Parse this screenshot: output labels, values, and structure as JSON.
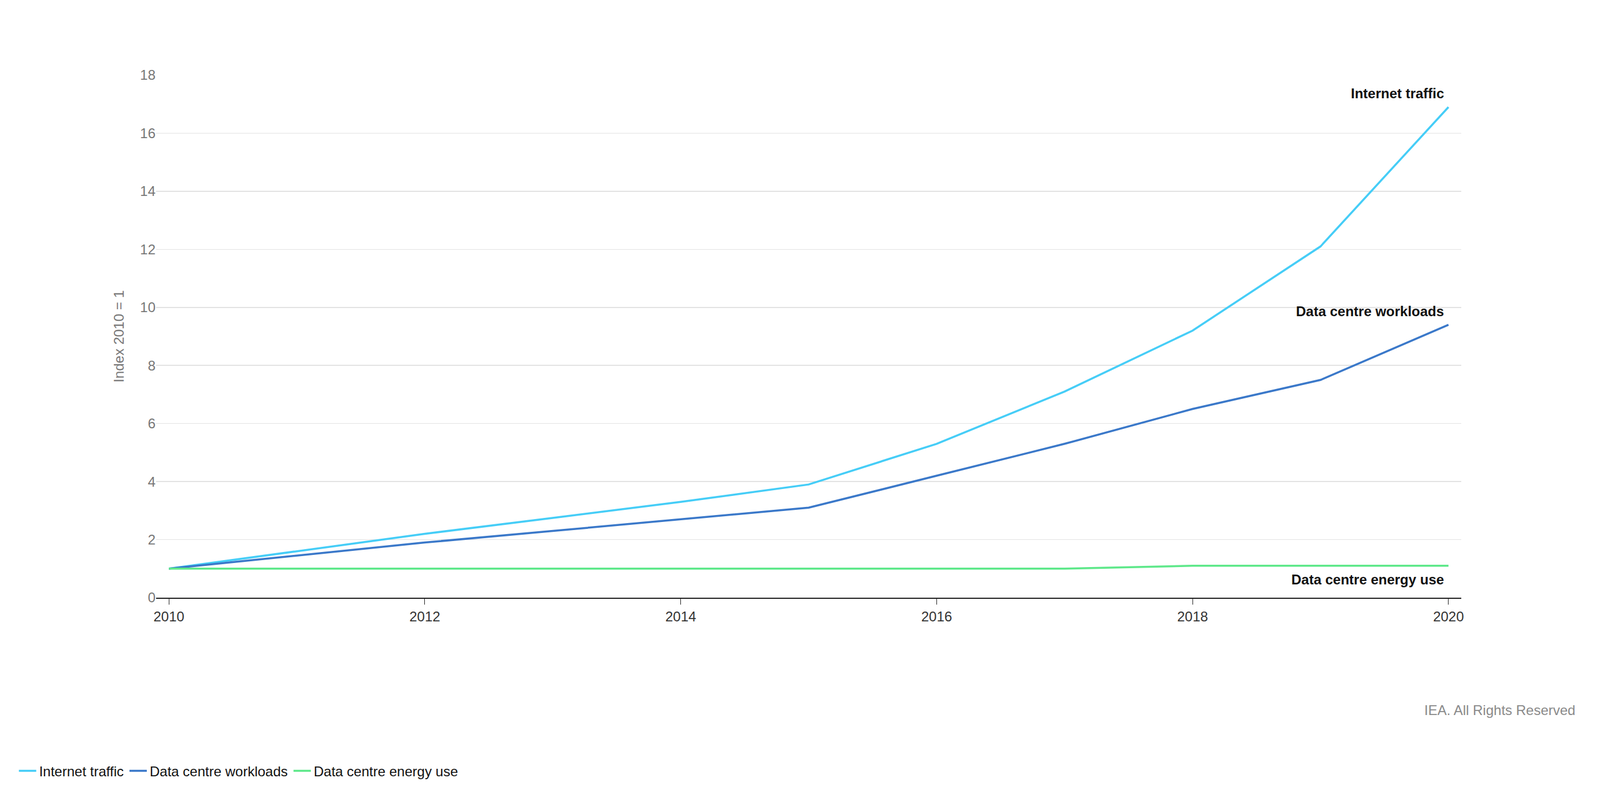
{
  "chart_data": {
    "type": "line",
    "y_label": "Index 2010 = 1",
    "source": "IEA. All Rights Reserved",
    "x": [
      2010,
      2011,
      2012,
      2013,
      2014,
      2015,
      2016,
      2017,
      2018,
      2019,
      2020
    ],
    "series": [
      {
        "name": "Internet traffic",
        "color": "#45cdf7",
        "values": [
          1,
          1.6,
          2.2,
          2.75,
          3.3,
          3.9,
          5.3,
          7.1,
          9.2,
          12.1,
          16.9
        ]
      },
      {
        "name": "Data centre workloads",
        "color": "#3a78c9",
        "values": [
          1,
          1.45,
          1.9,
          2.3,
          2.7,
          3.1,
          4.2,
          5.3,
          6.5,
          7.5,
          9.4
        ]
      },
      {
        "name": "Data centre energy use",
        "color": "#5ee88a",
        "values": [
          1,
          1,
          1,
          1,
          1,
          1,
          1,
          1,
          1.1,
          1.1,
          1.1
        ]
      }
    ],
    "xlim": [
      2009.9,
      2020.1
    ],
    "xticks": [
      2010,
      2012,
      2014,
      2016,
      2018,
      2020
    ],
    "ylim": [
      0,
      18
    ],
    "yticks": [
      0,
      2,
      4,
      6,
      8,
      10,
      12,
      14,
      16,
      18
    ],
    "grid": true,
    "legend": "bottom left"
  }
}
